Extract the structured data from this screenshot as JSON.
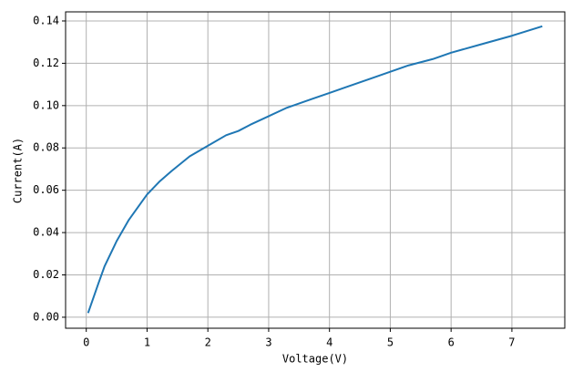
{
  "chart_data": {
    "type": "line",
    "xlabel": "Voltage(V)",
    "ylabel": "Current(A)",
    "x": [
      0.03,
      0.2,
      0.3,
      0.5,
      0.7,
      0.9,
      1.0,
      1.2,
      1.4,
      1.7,
      2.0,
      2.3,
      2.5,
      2.7,
      3.0,
      3.3,
      3.7,
      4.0,
      4.3,
      4.7,
      5.0,
      5.3,
      5.7,
      6.0,
      6.5,
      7.0,
      7.5
    ],
    "series": [
      {
        "color": "#1f77b4",
        "values": [
          0.002,
          0.016,
          0.024,
          0.036,
          0.046,
          0.054,
          0.058,
          0.064,
          0.069,
          0.076,
          0.081,
          0.086,
          0.088,
          0.091,
          0.095,
          0.099,
          0.103,
          0.106,
          0.109,
          0.113,
          0.116,
          0.119,
          0.122,
          0.125,
          0.129,
          0.133,
          0.1375
        ]
      }
    ],
    "xlim": [
      -0.34,
      7.87
    ],
    "ylim": [
      -0.0052,
      0.1443
    ],
    "xticks": [
      0,
      1,
      2,
      3,
      4,
      5,
      6,
      7
    ],
    "yticks": [
      {
        "value": 0,
        "label": "0.00"
      },
      {
        "value": 0.02,
        "label": "0.02"
      },
      {
        "value": 0.04,
        "label": "0.04"
      },
      {
        "value": 0.06,
        "label": "0.06"
      },
      {
        "value": 0.08,
        "label": "0.08"
      },
      {
        "value": 0.1,
        "label": "0.10"
      },
      {
        "value": 0.12,
        "label": "0.12"
      },
      {
        "value": 0.14,
        "label": "0.14"
      }
    ],
    "grid": true
  }
}
